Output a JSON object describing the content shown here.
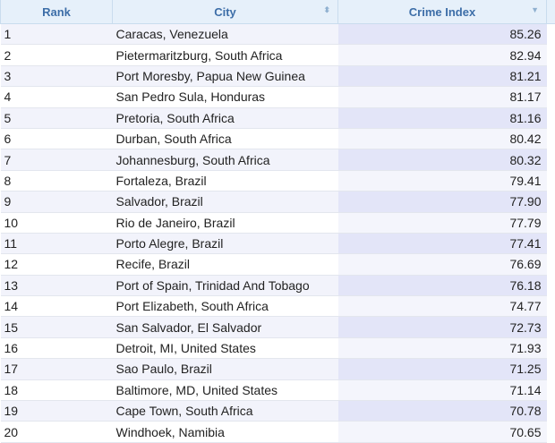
{
  "header": {
    "rank": "Rank",
    "city": "City",
    "crime_index": "Crime Index",
    "city_sort_icon": "sort-both-icon",
    "crime_sort_icon": "sort-desc-icon"
  },
  "rows": [
    {
      "rank": "1",
      "city": "Caracas, Venezuela",
      "crime_index": "85.26"
    },
    {
      "rank": "2",
      "city": "Pietermaritzburg, South Africa",
      "crime_index": "82.94"
    },
    {
      "rank": "3",
      "city": "Port Moresby, Papua New Guinea",
      "crime_index": "81.21"
    },
    {
      "rank": "4",
      "city": "San Pedro Sula, Honduras",
      "crime_index": "81.17"
    },
    {
      "rank": "5",
      "city": "Pretoria, South Africa",
      "crime_index": "81.16"
    },
    {
      "rank": "6",
      "city": "Durban, South Africa",
      "crime_index": "80.42"
    },
    {
      "rank": "7",
      "city": "Johannesburg, South Africa",
      "crime_index": "80.32"
    },
    {
      "rank": "8",
      "city": "Fortaleza, Brazil",
      "crime_index": "79.41"
    },
    {
      "rank": "9",
      "city": "Salvador, Brazil",
      "crime_index": "77.90"
    },
    {
      "rank": "10",
      "city": "Rio de Janeiro, Brazil",
      "crime_index": "77.79"
    },
    {
      "rank": "11",
      "city": "Porto Alegre, Brazil",
      "crime_index": "77.41"
    },
    {
      "rank": "12",
      "city": "Recife, Brazil",
      "crime_index": "76.69"
    },
    {
      "rank": "13",
      "city": "Port of Spain, Trinidad And Tobago",
      "crime_index": "76.18"
    },
    {
      "rank": "14",
      "city": "Port Elizabeth, South Africa",
      "crime_index": "74.77"
    },
    {
      "rank": "15",
      "city": "San Salvador, El Salvador",
      "crime_index": "72.73"
    },
    {
      "rank": "16",
      "city": "Detroit, MI, United States",
      "crime_index": "71.93"
    },
    {
      "rank": "17",
      "city": "Sao Paulo, Brazil",
      "crime_index": "71.25"
    },
    {
      "rank": "18",
      "city": "Baltimore, MD, United States",
      "crime_index": "71.14"
    },
    {
      "rank": "19",
      "city": "Cape Town, South Africa",
      "crime_index": "70.78"
    },
    {
      "rank": "20",
      "city": "Windhoek, Namibia",
      "crime_index": "70.65"
    }
  ]
}
